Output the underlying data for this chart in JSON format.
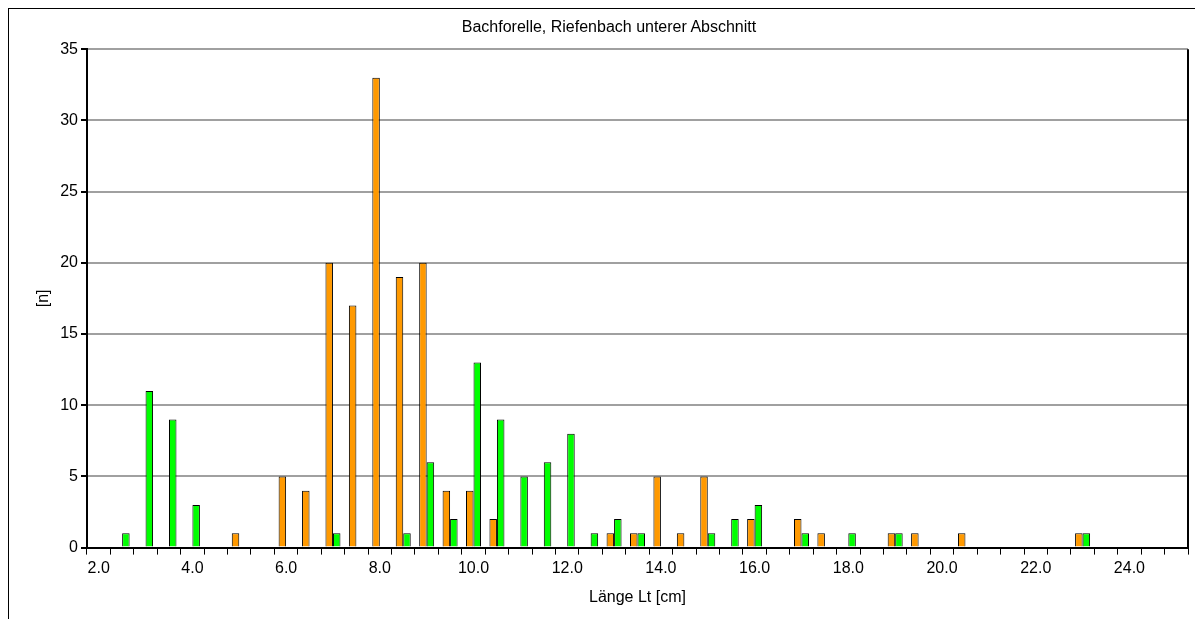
{
  "chart_data": {
    "type": "bar",
    "title": "Bachforelle, Riefenbach unterer Abschnitt",
    "xlabel": "Länge Lt [cm]",
    "ylabel": "[n]",
    "categories": [
      "2.0",
      null,
      null,
      null,
      "4.0",
      null,
      null,
      null,
      "6.0",
      null,
      null,
      null,
      "8.0",
      null,
      null,
      null,
      "10.0",
      null,
      null,
      null,
      "12.0",
      null,
      null,
      null,
      "14.0",
      null,
      null,
      null,
      "16.0",
      null,
      null,
      null,
      "18.0",
      null,
      null,
      null,
      "20.0",
      null,
      null,
      null,
      "22.0",
      null,
      null,
      null,
      "24.0",
      null,
      null
    ],
    "series": [
      {
        "color": "#ff9900",
        "values": [
          null,
          null,
          null,
          null,
          null,
          null,
          1,
          null,
          5,
          4,
          20,
          17,
          33,
          19,
          20,
          4,
          4,
          2,
          null,
          null,
          null,
          null,
          1,
          1,
          5,
          1,
          5,
          null,
          2,
          null,
          2,
          1,
          null,
          null,
          1,
          1,
          null,
          1,
          null,
          null,
          null,
          null,
          1,
          null,
          null,
          null,
          null
        ]
      },
      {
        "color": "#00ff00",
        "values": [
          null,
          1,
          11,
          9,
          3,
          null,
          null,
          null,
          null,
          null,
          1,
          null,
          null,
          1,
          6,
          2,
          13,
          9,
          5,
          6,
          8,
          1,
          2,
          1,
          null,
          null,
          1,
          2,
          3,
          null,
          1,
          null,
          1,
          null,
          1,
          null,
          null,
          null,
          null,
          null,
          null,
          null,
          1,
          null,
          null,
          null,
          null
        ]
      }
    ],
    "ylim": [
      0,
      35
    ],
    "yticks": [
      0,
      5,
      10,
      15,
      20,
      25,
      30,
      35
    ],
    "grid": "y",
    "legend": false
  }
}
